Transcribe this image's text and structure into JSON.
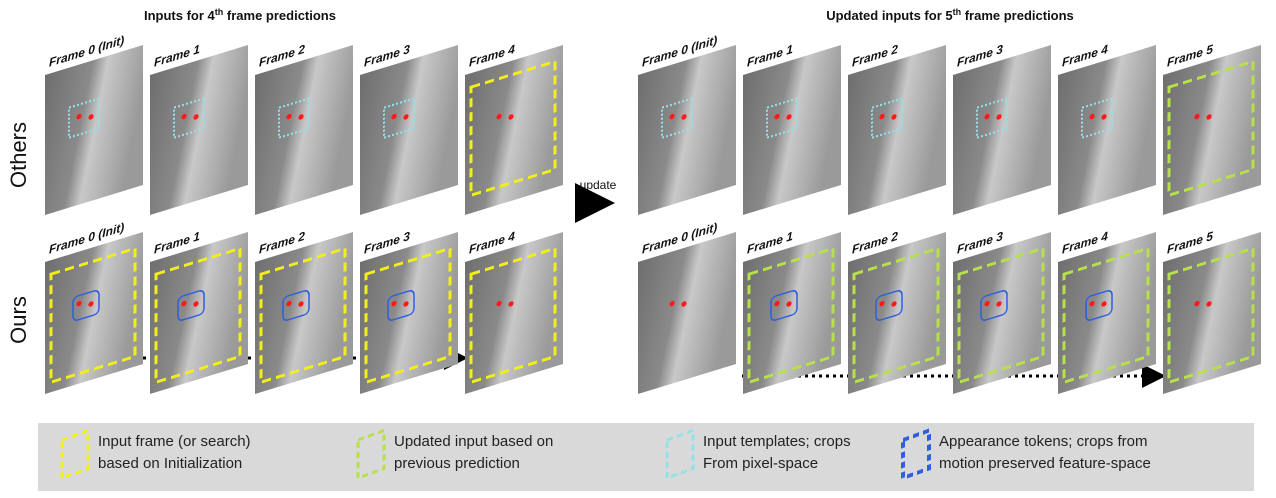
{
  "panels": [
    {
      "title": {
        "prefix": "Inputs for 4",
        "sup": "th",
        "suffix": " frame predictions"
      },
      "frames": [
        "Frame 0 (Init)",
        "Frame 1",
        "Frame 2",
        "Frame 3",
        "Frame 4"
      ]
    },
    {
      "title": {
        "prefix": "Updated inputs for 5",
        "sup": "th",
        "suffix": " frame predictions"
      },
      "frames": [
        "Frame 0 (Init)",
        "Frame 1",
        "Frame 2",
        "Frame 3",
        "Frame 4",
        "Frame 5"
      ]
    }
  ],
  "row_labels": [
    "Others",
    "Ours"
  ],
  "arrow_label": "update",
  "legend": [
    {
      "lines": [
        "Input frame (or search)",
        "based on Initialization"
      ]
    },
    {
      "lines": [
        "Updated input based on",
        "previous prediction"
      ]
    },
    {
      "lines": [
        "Input templates; crops",
        "From pixel-space"
      ]
    },
    {
      "lines": [
        "Appearance tokens; crops from",
        "motion preserved feature-space"
      ]
    }
  ]
}
